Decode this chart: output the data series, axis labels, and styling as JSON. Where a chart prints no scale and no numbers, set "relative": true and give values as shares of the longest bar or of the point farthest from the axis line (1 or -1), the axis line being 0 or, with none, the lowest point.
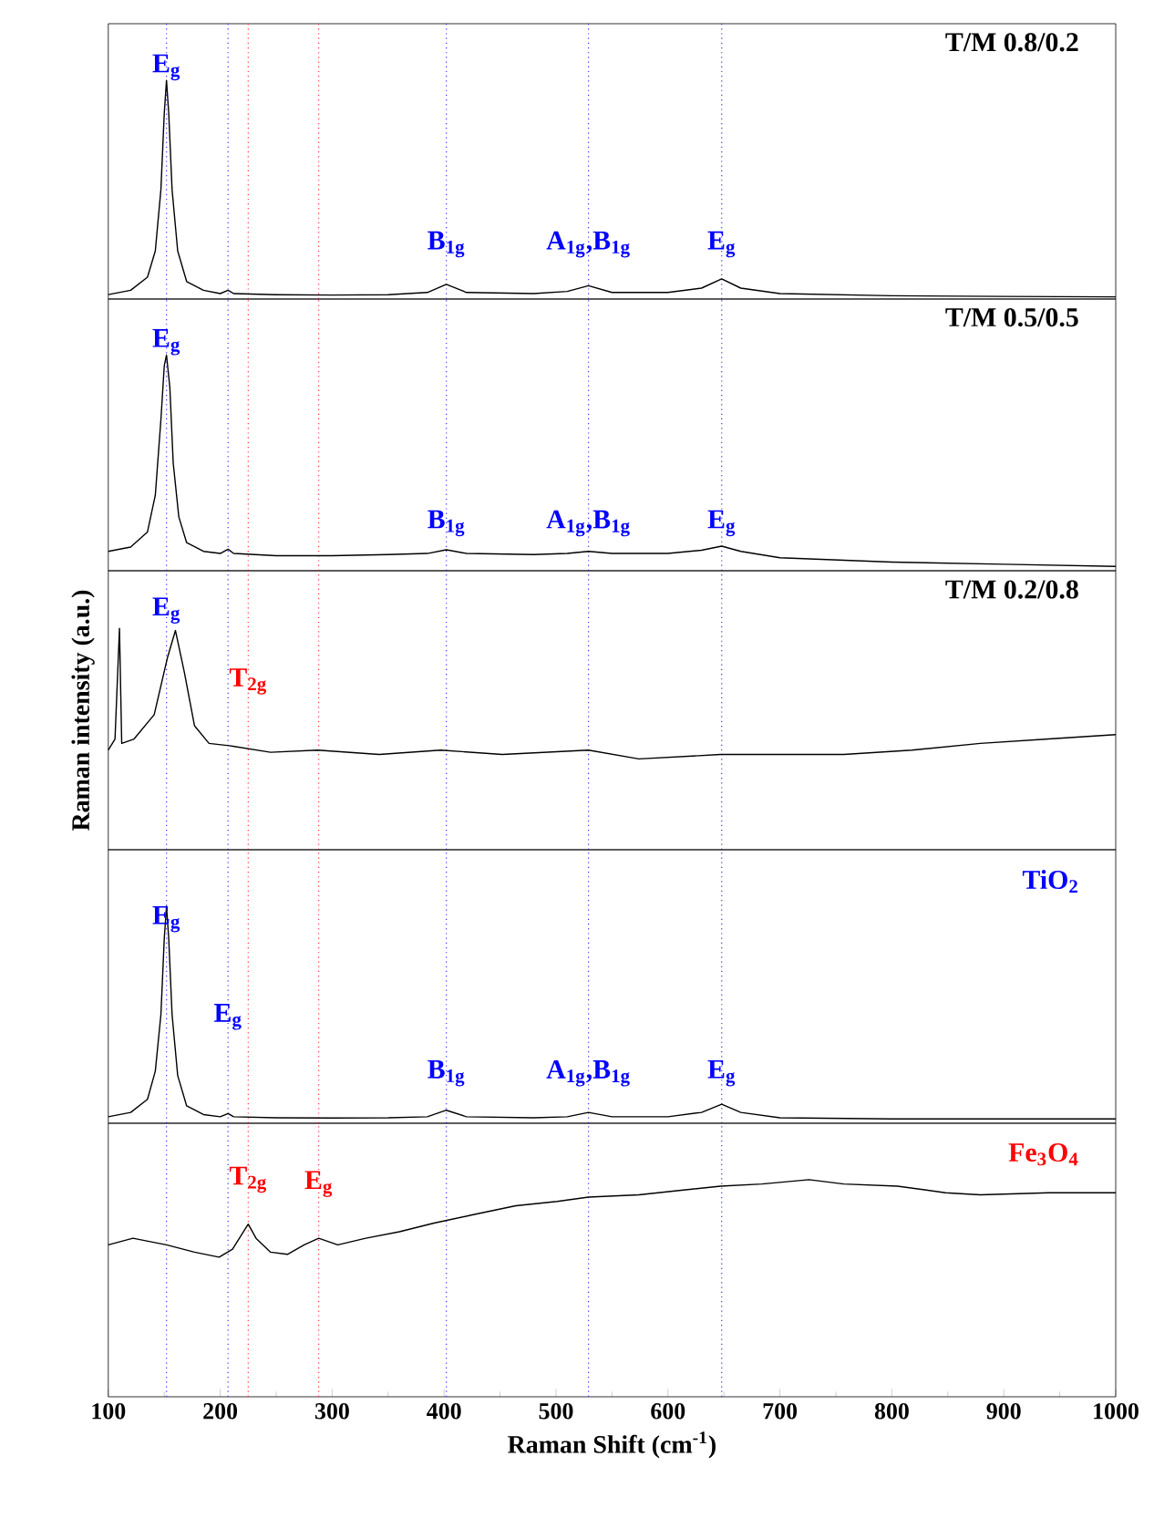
{
  "chart_data": [
    {
      "type": "line",
      "relative": true,
      "title": "T/M 0.8/0.2",
      "xlim": [
        100,
        1000
      ],
      "tick_labels": false,
      "x": [
        100,
        120,
        135,
        142,
        147,
        150,
        152,
        154,
        157,
        162,
        170,
        185,
        200,
        207,
        212,
        250,
        300,
        350,
        385,
        402,
        420,
        480,
        510,
        529,
        550,
        600,
        630,
        648,
        665,
        700,
        800,
        900,
        1000
      ],
      "series": [
        {
          "color": "#000000",
          "values": [
            0.02,
            0.04,
            0.1,
            0.22,
            0.5,
            0.85,
            1.0,
            0.85,
            0.5,
            0.22,
            0.08,
            0.04,
            0.025,
            0.04,
            0.025,
            0.02,
            0.018,
            0.02,
            0.03,
            0.067,
            0.03,
            0.025,
            0.035,
            0.061,
            0.03,
            0.03,
            0.05,
            0.092,
            0.05,
            0.025,
            0.015,
            0.012,
            0.01
          ]
        }
      ],
      "annotations": [
        {
          "text": "E$_{g}$",
          "x": 152,
          "y": 1.06
        },
        {
          "text": "B$_{1g}$",
          "x": 402,
          "y": 0.25
        },
        {
          "text": "A$_{1g}$,B$_{1g}$",
          "x": 529,
          "y": 0.25
        },
        {
          "text": "E$_{g}$",
          "x": 648,
          "y": 0.25
        }
      ],
      "ref_lines": [
        {
          "axis": "x",
          "value": 152,
          "color": "#3333ff",
          "line_style": "dotted"
        },
        {
          "axis": "x",
          "value": 207,
          "color": "#3333ff",
          "line_style": "dotted"
        },
        {
          "axis": "x",
          "value": 225,
          "color": "#ff3333",
          "line_style": "dotted"
        },
        {
          "axis": "x",
          "value": 288,
          "color": "#ff3333",
          "line_style": "dotted"
        },
        {
          "axis": "x",
          "value": 402,
          "color": "#3333ff",
          "line_style": "dotted"
        },
        {
          "axis": "x",
          "value": 529,
          "color": "#3333ff",
          "line_style": "dotted"
        },
        {
          "axis": "x",
          "value": 648,
          "color": "#3333ff",
          "line_style": "dotted"
        }
      ]
    },
    {
      "type": "line",
      "relative": true,
      "title": "T/M 0.5/0.5",
      "xlim": [
        100,
        1000
      ],
      "tick_labels": false,
      "x": [
        100,
        120,
        135,
        142,
        147,
        150,
        152,
        155,
        158,
        163,
        170,
        185,
        200,
        207,
        212,
        250,
        300,
        350,
        385,
        402,
        420,
        480,
        510,
        529,
        550,
        600,
        630,
        648,
        665,
        700,
        800,
        900,
        1000
      ],
      "series": [
        {
          "color": "#000000",
          "values": [
            0.09,
            0.11,
            0.18,
            0.35,
            0.7,
            0.95,
            1.0,
            0.85,
            0.5,
            0.25,
            0.13,
            0.09,
            0.08,
            0.1,
            0.08,
            0.07,
            0.07,
            0.075,
            0.08,
            0.097,
            0.08,
            0.075,
            0.08,
            0.09,
            0.08,
            0.08,
            0.095,
            0.114,
            0.09,
            0.06,
            0.04,
            0.03,
            0.02
          ]
        }
      ],
      "annotations": [
        {
          "text": "E$_{g}$",
          "x": 152,
          "y": 1.06
        },
        {
          "text": "B$_{1g}$",
          "x": 402,
          "y": 0.22
        },
        {
          "text": "A$_{1g}$,B$_{1g}$",
          "x": 529,
          "y": 0.22
        },
        {
          "text": "E$_{g}$",
          "x": 648,
          "y": 0.22
        }
      ],
      "ref_lines": [
        {
          "axis": "x",
          "value": 152,
          "color": "#3333ff",
          "line_style": "dotted"
        },
        {
          "axis": "x",
          "value": 207,
          "color": "#3333ff",
          "line_style": "dotted"
        },
        {
          "axis": "x",
          "value": 225,
          "color": "#ff3333",
          "line_style": "dotted"
        },
        {
          "axis": "x",
          "value": 288,
          "color": "#ff3333",
          "line_style": "dotted"
        },
        {
          "axis": "x",
          "value": 402,
          "color": "#3333ff",
          "line_style": "dotted"
        },
        {
          "axis": "x",
          "value": 529,
          "color": "#3333ff",
          "line_style": "dotted"
        },
        {
          "axis": "x",
          "value": 648,
          "color": "#3333ff",
          "line_style": "dotted"
        }
      ]
    },
    {
      "type": "line",
      "relative": true,
      "title": "T/M 0.2/0.8",
      "ylabel": "Raman intensity (a.u.)",
      "xlim": [
        100,
        1000
      ],
      "tick_labels": false,
      "x": [
        100,
        106,
        110,
        112,
        123,
        141,
        153,
        160,
        168,
        177,
        190,
        208,
        245,
        287,
        342,
        397,
        452,
        529,
        574,
        647,
        757,
        818,
        879,
        940,
        1000
      ],
      "series": [
        {
          "color": "#000000",
          "values": [
            0.45,
            0.5,
            1.0,
            0.48,
            0.5,
            0.61,
            0.87,
            0.99,
            0.8,
            0.56,
            0.48,
            0.47,
            0.44,
            0.45,
            0.43,
            0.45,
            0.43,
            0.45,
            0.41,
            0.43,
            0.43,
            0.45,
            0.48,
            0.5,
            0.52
          ]
        }
      ],
      "annotations": [
        {
          "text": "E$_{g}$",
          "x": 152,
          "y": 1.08
        },
        {
          "text": "T$_{2g}$",
          "x": 225,
          "y": 0.76
        }
      ],
      "ref_lines": [
        {
          "axis": "x",
          "value": 152,
          "color": "#3333ff",
          "line_style": "dotted"
        },
        {
          "axis": "x",
          "value": 207,
          "color": "#3333ff",
          "line_style": "dotted"
        },
        {
          "axis": "x",
          "value": 225,
          "color": "#ff3333",
          "line_style": "dotted"
        },
        {
          "axis": "x",
          "value": 288,
          "color": "#ff3333",
          "line_style": "dotted"
        },
        {
          "axis": "x",
          "value": 402,
          "color": "#3333ff",
          "line_style": "dotted"
        },
        {
          "axis": "x",
          "value": 529,
          "color": "#3333ff",
          "line_style": "dotted"
        },
        {
          "axis": "x",
          "value": 648,
          "color": "#3333ff",
          "line_style": "dotted"
        }
      ]
    },
    {
      "type": "line",
      "relative": true,
      "xlim": [
        100,
        1000
      ],
      "tick_labels": false,
      "x": [
        100,
        120,
        135,
        142,
        147,
        150,
        152,
        154,
        157,
        162,
        170,
        185,
        200,
        207,
        212,
        250,
        300,
        350,
        385,
        402,
        420,
        480,
        510,
        529,
        550,
        600,
        630,
        648,
        665,
        700,
        800,
        900,
        1000
      ],
      "series": [
        {
          "color": "#000000",
          "values": [
            0.03,
            0.05,
            0.11,
            0.24,
            0.5,
            0.85,
            1.0,
            0.85,
            0.5,
            0.22,
            0.08,
            0.04,
            0.03,
            0.045,
            0.03,
            0.025,
            0.024,
            0.025,
            0.03,
            0.06,
            0.03,
            0.025,
            0.03,
            0.05,
            0.03,
            0.03,
            0.05,
            0.088,
            0.05,
            0.025,
            0.02,
            0.02,
            0.02
          ]
        }
      ],
      "annotations": [
        "TiO$_{2}$",
        {
          "text": "E$_{g}$",
          "x": 152,
          "y": 0.94
        },
        {
          "text": "E$_{g}$",
          "x": 207,
          "y": 0.49
        },
        {
          "text": "B$_{1g}$",
          "x": 402,
          "y": 0.23
        },
        {
          "text": "A$_{1g}$,B$_{1g}$",
          "x": 529,
          "y": 0.23
        },
        {
          "text": "E$_{g}$",
          "x": 648,
          "y": 0.23
        }
      ],
      "ref_lines": [
        {
          "axis": "x",
          "value": 152,
          "color": "#3333ff",
          "line_style": "dotted"
        },
        {
          "axis": "x",
          "value": 207,
          "color": "#3333ff",
          "line_style": "dotted"
        },
        {
          "axis": "x",
          "value": 225,
          "color": "#ff3333",
          "line_style": "dotted"
        },
        {
          "axis": "x",
          "value": 288,
          "color": "#ff3333",
          "line_style": "dotted"
        },
        {
          "axis": "x",
          "value": 402,
          "color": "#3333ff",
          "line_style": "dotted"
        },
        {
          "axis": "x",
          "value": 529,
          "color": "#3333ff",
          "line_style": "dotted"
        },
        {
          "axis": "x",
          "value": 648,
          "color": "#3333ff",
          "line_style": "dotted"
        }
      ]
    },
    {
      "type": "line",
      "relative": true,
      "xlabel": "Raman Shift (cm$^{-1}$)",
      "xlim": [
        100,
        1000
      ],
      "xticks": [
        100,
        200,
        300,
        400,
        500,
        600,
        700,
        800,
        900,
        1000
      ],
      "tick_labels": "x",
      "x": [
        100,
        122,
        152,
        177,
        199,
        211,
        225,
        232,
        245,
        260,
        275,
        288,
        305,
        330,
        360,
        391,
        427,
        464,
        501,
        529,
        574,
        610,
        647,
        684,
        726,
        757,
        805,
        848,
        879,
        940,
        1000
      ],
      "series": [
        {
          "color": "#000000",
          "values": [
            0.7,
            0.73,
            0.7,
            0.666,
            0.643,
            0.68,
            0.795,
            0.73,
            0.666,
            0.656,
            0.7,
            0.73,
            0.7,
            0.73,
            0.76,
            0.8,
            0.84,
            0.88,
            0.9,
            0.92,
            0.93,
            0.95,
            0.97,
            0.98,
            1.0,
            0.98,
            0.97,
            0.94,
            0.93,
            0.94,
            0.94
          ]
        }
      ],
      "annotations": [
        "Fe$_{3}$O$_{4}$",
        {
          "text": "T$_{2g}$",
          "x": 225,
          "y": 1.0
        },
        {
          "text": "E$_{g}$",
          "x": 288,
          "y": 0.98
        }
      ],
      "ref_lines": [
        {
          "axis": "x",
          "value": 152,
          "color": "#3333ff",
          "line_style": "dotted"
        },
        {
          "axis": "x",
          "value": 207,
          "color": "#3333ff",
          "line_style": "dotted"
        },
        {
          "axis": "x",
          "value": 225,
          "color": "#ff3333",
          "line_style": "dotted"
        },
        {
          "axis": "x",
          "value": 288,
          "color": "#ff3333",
          "line_style": "dotted"
        },
        {
          "axis": "x",
          "value": 402,
          "color": "#3333ff",
          "line_style": "dotted"
        },
        {
          "axis": "x",
          "value": 529,
          "color": "#3333ff",
          "line_style": "dotted"
        },
        {
          "axis": "x",
          "value": 648,
          "color": "#3333ff",
          "line_style": "dotted"
        }
      ]
    }
  ]
}
